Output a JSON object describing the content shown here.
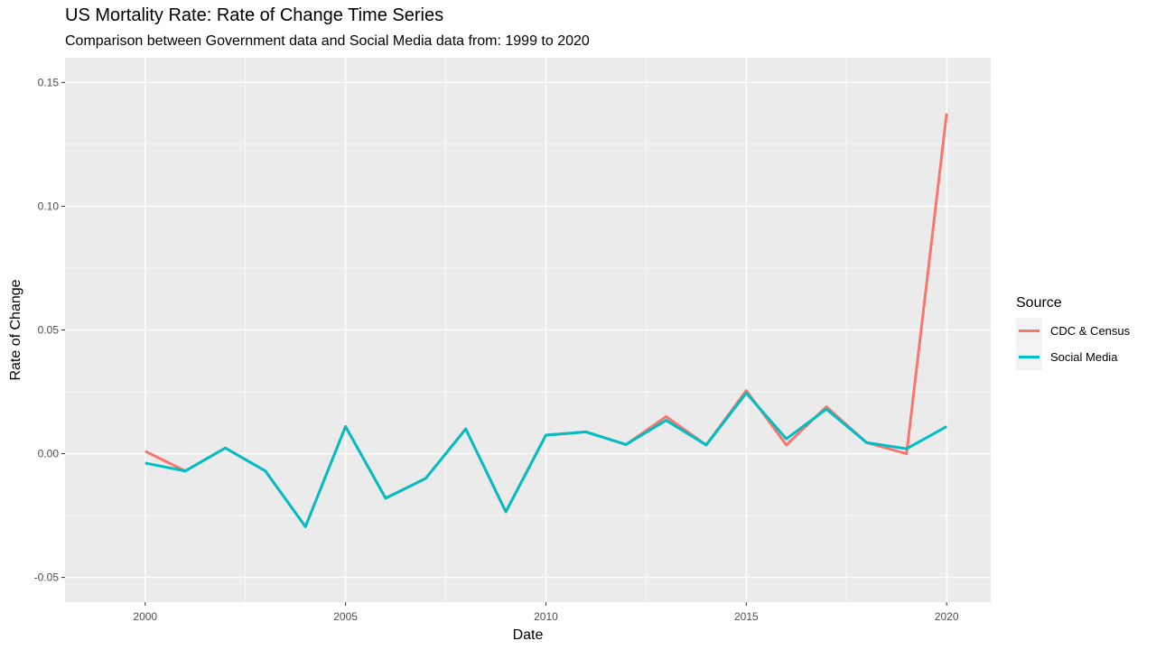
{
  "chart_data": {
    "type": "line",
    "title": "US Mortality Rate: Rate of Change Time Series",
    "subtitle": "Comparison between Government data and Social Media data from: 1999 to 2020",
    "xlabel": "Date",
    "ylabel": "Rate of Change",
    "xlim": [
      1998,
      2021.1
    ],
    "ylim": [
      -0.06,
      0.16
    ],
    "x_ticks": [
      2000,
      2005,
      2010,
      2015,
      2020
    ],
    "y_ticks": [
      -0.05,
      0.0,
      0.05,
      0.1,
      0.15
    ],
    "x_tick_labels": [
      "2000",
      "2005",
      "2010",
      "2015",
      "2020"
    ],
    "y_tick_labels": [
      "-0.05",
      "0.00",
      "0.05",
      "0.10",
      "0.15"
    ],
    "grid": true,
    "legend": {
      "title": "Source",
      "placement": "right"
    },
    "x": [
      2000,
      2001,
      2002,
      2003,
      2004,
      2005,
      2006,
      2007,
      2008,
      2009,
      2010,
      2011,
      2012,
      2013,
      2014,
      2015,
      2016,
      2017,
      2018,
      2019,
      2020
    ],
    "series": [
      {
        "name": "CDC & Census",
        "color": "#F8766D",
        "values": [
          0.001,
          -0.007,
          0.0023,
          -0.007,
          -0.0295,
          0.011,
          -0.018,
          -0.01,
          0.01,
          -0.0235,
          0.0075,
          0.0088,
          0.0037,
          0.015,
          0.0035,
          0.0255,
          0.0035,
          0.019,
          0.0045,
          0.0,
          0.1375
        ]
      },
      {
        "name": "Social Media",
        "color": "#00BFC4",
        "values": [
          -0.0038,
          -0.007,
          0.0023,
          -0.007,
          -0.0295,
          0.011,
          -0.018,
          -0.01,
          0.01,
          -0.0235,
          0.0075,
          0.0088,
          0.0037,
          0.0135,
          0.0035,
          0.0245,
          0.006,
          0.018,
          0.0045,
          0.002,
          0.011
        ]
      }
    ]
  }
}
